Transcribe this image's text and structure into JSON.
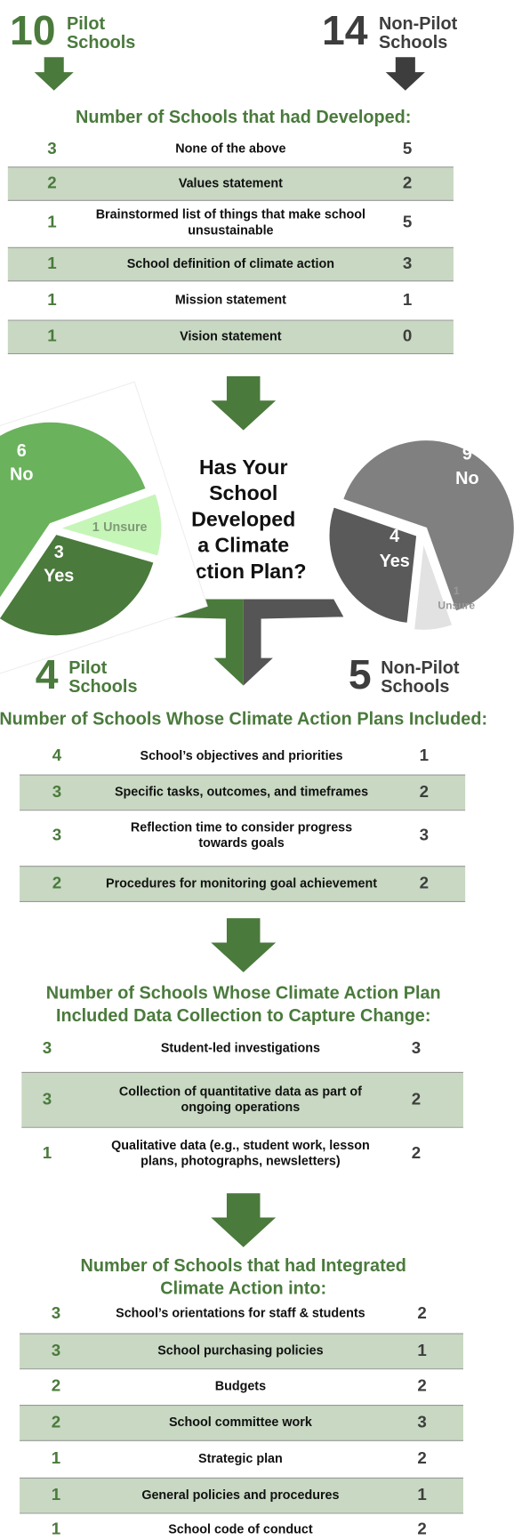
{
  "header": {
    "pilot": {
      "count": 10,
      "label_lines": [
        "Pilot",
        "Schools"
      ]
    },
    "nonpilot": {
      "count": 14,
      "label_lines": [
        "Non-Pilot",
        "Schools"
      ]
    }
  },
  "sections": [
    {
      "title_lines": [
        "Number of Schools that had Developed:"
      ],
      "rows": [
        {
          "pilot": 3,
          "label_lines": [
            "None of the above"
          ],
          "nonpilot": 5
        },
        {
          "pilot": 2,
          "label_lines": [
            "Values statement"
          ],
          "nonpilot": 2
        },
        {
          "pilot": 1,
          "label_lines": [
            "Brainstormed list of things that make school",
            "unsustainable"
          ],
          "nonpilot": 5
        },
        {
          "pilot": 1,
          "label_lines": [
            "School definition of climate action"
          ],
          "nonpilot": 3
        },
        {
          "pilot": 1,
          "label_lines": [
            "Mission statement"
          ],
          "nonpilot": 1
        },
        {
          "pilot": 1,
          "label_lines": [
            "Vision statement"
          ],
          "nonpilot": 0
        }
      ]
    },
    {
      "title_lines": [
        "Number of Schools Whose Climate Action Plans Included:"
      ],
      "rows": [
        {
          "pilot": 4,
          "label_lines": [
            "School’s objectives and priorities"
          ],
          "nonpilot": 1
        },
        {
          "pilot": 3,
          "label_lines": [
            "Specific tasks, outcomes, and timeframes"
          ],
          "nonpilot": 2
        },
        {
          "pilot": 3,
          "label_lines": [
            "Reflection time to consider progress",
            "towards goals"
          ],
          "nonpilot": 3
        },
        {
          "pilot": 2,
          "label_lines": [
            "Procedures for monitoring goal achievement"
          ],
          "nonpilot": 2
        }
      ]
    },
    {
      "title_lines": [
        "Number of Schools Whose Climate Action Plan",
        "Included Data Collection to Capture Change:"
      ],
      "rows": [
        {
          "pilot": 3,
          "label_lines": [
            "Student-led investigations"
          ],
          "nonpilot": 3
        },
        {
          "pilot": 3,
          "label_lines": [
            "Collection of quantitative data as part of",
            "ongoing operations"
          ],
          "nonpilot": 2
        },
        {
          "pilot": 1,
          "label_lines": [
            "Qualitative data (e.g., student work, lesson",
            "plans, photographs, newsletters)"
          ],
          "nonpilot": 2
        }
      ]
    },
    {
      "title_lines": [
        "Number of Schools that had Integrated",
        "Climate Action into:"
      ],
      "rows": [
        {
          "pilot": 3,
          "label_lines": [
            "School’s orientations for staff & students"
          ],
          "nonpilot": 2
        },
        {
          "pilot": 3,
          "label_lines": [
            "School purchasing policies"
          ],
          "nonpilot": 1
        },
        {
          "pilot": 2,
          "label_lines": [
            "Budgets"
          ],
          "nonpilot": 2
        },
        {
          "pilot": 2,
          "label_lines": [
            "School committee work"
          ],
          "nonpilot": 3
        },
        {
          "pilot": 1,
          "label_lines": [
            "Strategic plan"
          ],
          "nonpilot": 2
        },
        {
          "pilot": 1,
          "label_lines": [
            "General policies and procedures"
          ],
          "nonpilot": 1
        },
        {
          "pilot": 1,
          "label_lines": [
            "School code of conduct"
          ],
          "nonpilot": 2
        }
      ]
    }
  ],
  "question_lines": [
    "Has Your",
    "School",
    "Developed",
    "a Climate",
    "Action Plan?"
  ],
  "pies": {
    "pilot": {
      "slices": [
        {
          "label": "No",
          "value": 6,
          "color": "#6ab25c"
        },
        {
          "label": "Unsure",
          "value": 1,
          "color": "#c6f5b8"
        },
        {
          "label": "Yes",
          "value": 3,
          "color": "#4a7a3c"
        }
      ]
    },
    "nonpilot": {
      "slices": [
        {
          "label": "No",
          "value": 9,
          "color": "#808080"
        },
        {
          "label": "Unsure",
          "value": 1,
          "color": "#e2e2e2"
        },
        {
          "label": "Yes",
          "value": 4,
          "color": "#5a5a5a"
        }
      ]
    }
  },
  "plan_counts": {
    "pilot": {
      "count": 4,
      "label_lines": [
        "Pilot",
        "Schools"
      ]
    },
    "nonpilot": {
      "count": 5,
      "label_lines": [
        "Non-Pilot",
        "Schools"
      ]
    }
  }
}
